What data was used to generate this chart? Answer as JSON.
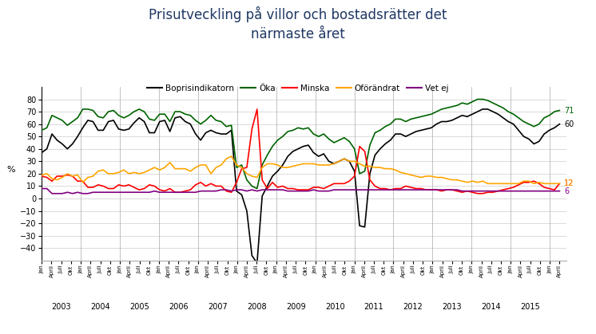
{
  "title": "Prisutveckling på villor och bostadsrätter det\nnärmaste året",
  "title_color": "#1F3864",
  "ylabel": "%",
  "ylim": [
    -50,
    90
  ],
  "yticks": [
    -40,
    -30,
    -20,
    -10,
    0,
    10,
    20,
    30,
    40,
    50,
    60,
    70,
    80
  ],
  "legend_labels": [
    "Boprisindikatorn",
    "Öka",
    "Minska",
    "Oförändrat",
    "Vet ej"
  ],
  "legend_colors": [
    "#000000",
    "#006400",
    "#FF0000",
    "#FFA500",
    "#800080"
  ],
  "end_label_texts": [
    "60",
    "71",
    "12",
    "12",
    "6"
  ],
  "background_color": "#FFFFFF",
  "series": {
    "bopris": [
      37,
      40,
      52,
      47,
      44,
      40,
      44,
      50,
      57,
      63,
      62,
      55,
      55,
      62,
      63,
      56,
      55,
      56,
      61,
      65,
      62,
      53,
      53,
      62,
      63,
      54,
      65,
      66,
      62,
      60,
      52,
      47,
      53,
      55,
      53,
      52,
      52,
      55,
      6,
      3,
      -10,
      -46,
      -52,
      2,
      10,
      18,
      22,
      27,
      34,
      38,
      40,
      42,
      43,
      37,
      34,
      36,
      30,
      28,
      30,
      32,
      30,
      22,
      -22,
      -23,
      20,
      35,
      40,
      44,
      47,
      52,
      52,
      50,
      52,
      54,
      55,
      56,
      57,
      60,
      62,
      62,
      63,
      65,
      67,
      66,
      68,
      70,
      72,
      72,
      70,
      68,
      65,
      62,
      60,
      55,
      50,
      48,
      44,
      46,
      52,
      55,
      57,
      60
    ],
    "oka": [
      55,
      57,
      67,
      65,
      63,
      59,
      62,
      65,
      72,
      72,
      71,
      66,
      65,
      70,
      71,
      67,
      65,
      67,
      70,
      72,
      70,
      64,
      63,
      68,
      68,
      62,
      70,
      70,
      68,
      67,
      63,
      60,
      63,
      67,
      63,
      62,
      58,
      59,
      25,
      27,
      15,
      10,
      8,
      27,
      35,
      42,
      47,
      50,
      54,
      55,
      57,
      56,
      57,
      52,
      50,
      52,
      48,
      45,
      47,
      49,
      46,
      40,
      20,
      22,
      43,
      53,
      55,
      58,
      60,
      64,
      64,
      62,
      64,
      65,
      66,
      67,
      68,
      70,
      72,
      73,
      74,
      75,
      77,
      76,
      78,
      80,
      80,
      79,
      77,
      75,
      73,
      70,
      68,
      65,
      62,
      60,
      58,
      60,
      65,
      67,
      70,
      71
    ],
    "minska": [
      18,
      17,
      14,
      18,
      18,
      19,
      18,
      14,
      14,
      9,
      9,
      11,
      10,
      8,
      8,
      11,
      10,
      11,
      9,
      7,
      8,
      11,
      10,
      7,
      6,
      8,
      5,
      5,
      6,
      7,
      11,
      13,
      10,
      12,
      10,
      10,
      6,
      5,
      13,
      24,
      25,
      56,
      72,
      15,
      8,
      13,
      9,
      10,
      8,
      8,
      7,
      7,
      7,
      9,
      9,
      8,
      10,
      12,
      12,
      12,
      14,
      18,
      42,
      38,
      15,
      10,
      8,
      8,
      7,
      8,
      8,
      10,
      9,
      8,
      8,
      7,
      7,
      7,
      6,
      7,
      7,
      6,
      5,
      6,
      5,
      4,
      4,
      5,
      5,
      6,
      7,
      8,
      9,
      11,
      13,
      13,
      14,
      12,
      9,
      8,
      7,
      12
    ],
    "ofora": [
      19,
      20,
      16,
      15,
      17,
      20,
      18,
      19,
      13,
      17,
      18,
      22,
      23,
      20,
      20,
      21,
      23,
      20,
      21,
      20,
      21,
      23,
      25,
      23,
      25,
      29,
      24,
      24,
      24,
      22,
      25,
      27,
      27,
      20,
      25,
      27,
      32,
      34,
      27,
      25,
      20,
      18,
      17,
      25,
      28,
      28,
      27,
      25,
      25,
      26,
      27,
      28,
      28,
      28,
      27,
      27,
      27,
      28,
      30,
      32,
      30,
      30,
      28,
      26,
      26,
      25,
      25,
      24,
      24,
      23,
      21,
      20,
      19,
      18,
      17,
      18,
      18,
      17,
      17,
      16,
      15,
      15,
      14,
      13,
      14,
      13,
      14,
      12,
      12,
      12,
      12,
      12,
      12,
      12,
      14,
      14,
      12,
      13,
      12,
      12,
      12,
      12
    ],
    "vetej": [
      8,
      8,
      4,
      4,
      4,
      5,
      4,
      5,
      4,
      4,
      5,
      5,
      5,
      5,
      5,
      5,
      5,
      5,
      5,
      5,
      5,
      5,
      6,
      5,
      5,
      5,
      5,
      5,
      5,
      5,
      5,
      6,
      6,
      6,
      6,
      7,
      7,
      6,
      7,
      7,
      6,
      7,
      6,
      7,
      7,
      7,
      7,
      7,
      6,
      6,
      6,
      6,
      6,
      7,
      6,
      6,
      6,
      7,
      7,
      7,
      7,
      7,
      7,
      7,
      7,
      7,
      7,
      7,
      7,
      7,
      7,
      7,
      7,
      7,
      7,
      7,
      7,
      7,
      7,
      7,
      7,
      7,
      6,
      6,
      6,
      6,
      6,
      6,
      6,
      6,
      6,
      6,
      6,
      6,
      6,
      6,
      6,
      6,
      6,
      6,
      6,
      6
    ]
  }
}
